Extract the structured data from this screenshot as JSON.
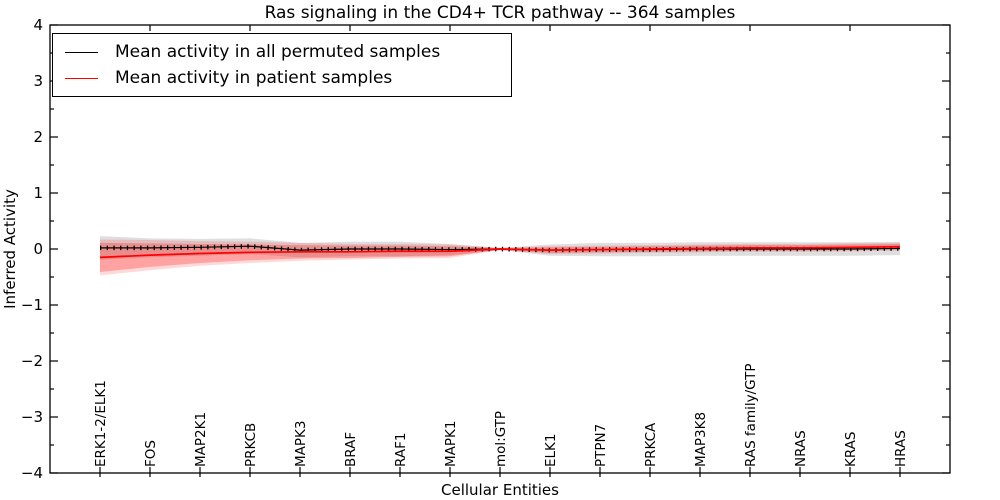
{
  "title": "Ras signaling in the CD4+ TCR pathway -- 364 samples",
  "axes": {
    "xlabel": "Cellular Entities",
    "ylabel": "Inferred Activity"
  },
  "chart_data": {
    "type": "line",
    "title": "Ras signaling in the CD4+ TCR pathway -- 364 samples",
    "xlabel": "Cellular Entities",
    "ylabel": "Inferred Activity",
    "ylim": [
      -4,
      4
    ],
    "grid": false,
    "legend_position": "upper left",
    "yticks": [
      {
        "v": -4,
        "label": "−4"
      },
      {
        "v": -3,
        "label": "−3"
      },
      {
        "v": -2,
        "label": "−2"
      },
      {
        "v": -1,
        "label": "−1"
      },
      {
        "v": 0,
        "label": "0"
      },
      {
        "v": 1,
        "label": "1"
      },
      {
        "v": 2,
        "label": "2"
      },
      {
        "v": 3,
        "label": "3"
      },
      {
        "v": 4,
        "label": "4"
      }
    ],
    "categories": [
      "ERK1-2/ELK1",
      "FOS",
      "MAP2K1",
      "PRKCB",
      "MAPK3",
      "BRAF",
      "RAF1",
      "MAPK1",
      "mol:GTP",
      "ELK1",
      "PTPN7",
      "PRKCA",
      "MAP3K8",
      "RAS family/GTP",
      "NRAS",
      "KRAS",
      "HRAS"
    ],
    "series": [
      {
        "name": "Mean activity in all permuted samples",
        "color": "#000000",
        "band_fill": "rgba(0,0,0,0.13)",
        "values": [
          0.02,
          0.02,
          0.03,
          0.05,
          -0.02,
          0.0,
          0.0,
          -0.01,
          0.0,
          -0.02,
          -0.01,
          -0.01,
          0.0,
          0.0,
          0.0,
          0.0,
          0.01
        ],
        "band_halfwidth": [
          0.21,
          0.17,
          0.15,
          0.14,
          0.13,
          0.13,
          0.13,
          0.1,
          0.02,
          0.1,
          0.12,
          0.12,
          0.12,
          0.12,
          0.12,
          0.12,
          0.12
        ]
      },
      {
        "name": "Mean activity in patient samples",
        "color": "#ff0000",
        "band_fill": "rgba(255,0,0,0.25)",
        "outer_band_fill": "rgba(255,0,0,0.15)",
        "values": [
          -0.15,
          -0.11,
          -0.08,
          -0.06,
          -0.05,
          -0.05,
          -0.04,
          -0.04,
          0.0,
          -0.02,
          -0.01,
          0.0,
          0.01,
          0.02,
          0.02,
          0.03,
          0.04
        ],
        "band_halfwidth": [
          0.26,
          0.21,
          0.17,
          0.14,
          0.12,
          0.11,
          0.1,
          0.09,
          0.015,
          0.05,
          0.05,
          0.05,
          0.05,
          0.05,
          0.05,
          0.05,
          0.05
        ],
        "outer_band_halfwidth": [
          0.32,
          0.27,
          0.22,
          0.19,
          0.16,
          0.14,
          0.13,
          0.12,
          0.02,
          0.07,
          0.07,
          0.07,
          0.07,
          0.07,
          0.07,
          0.07,
          0.07
        ]
      }
    ]
  },
  "legend": {
    "items": [
      {
        "label": "Mean activity in all permuted samples",
        "color": "#000000"
      },
      {
        "label": "Mean activity in patient samples",
        "color": "#ff0000"
      }
    ]
  },
  "colors": {
    "spine": "#000000",
    "background": "#ffffff",
    "permuted_line": "#000000",
    "patient_line": "#ff0000"
  }
}
